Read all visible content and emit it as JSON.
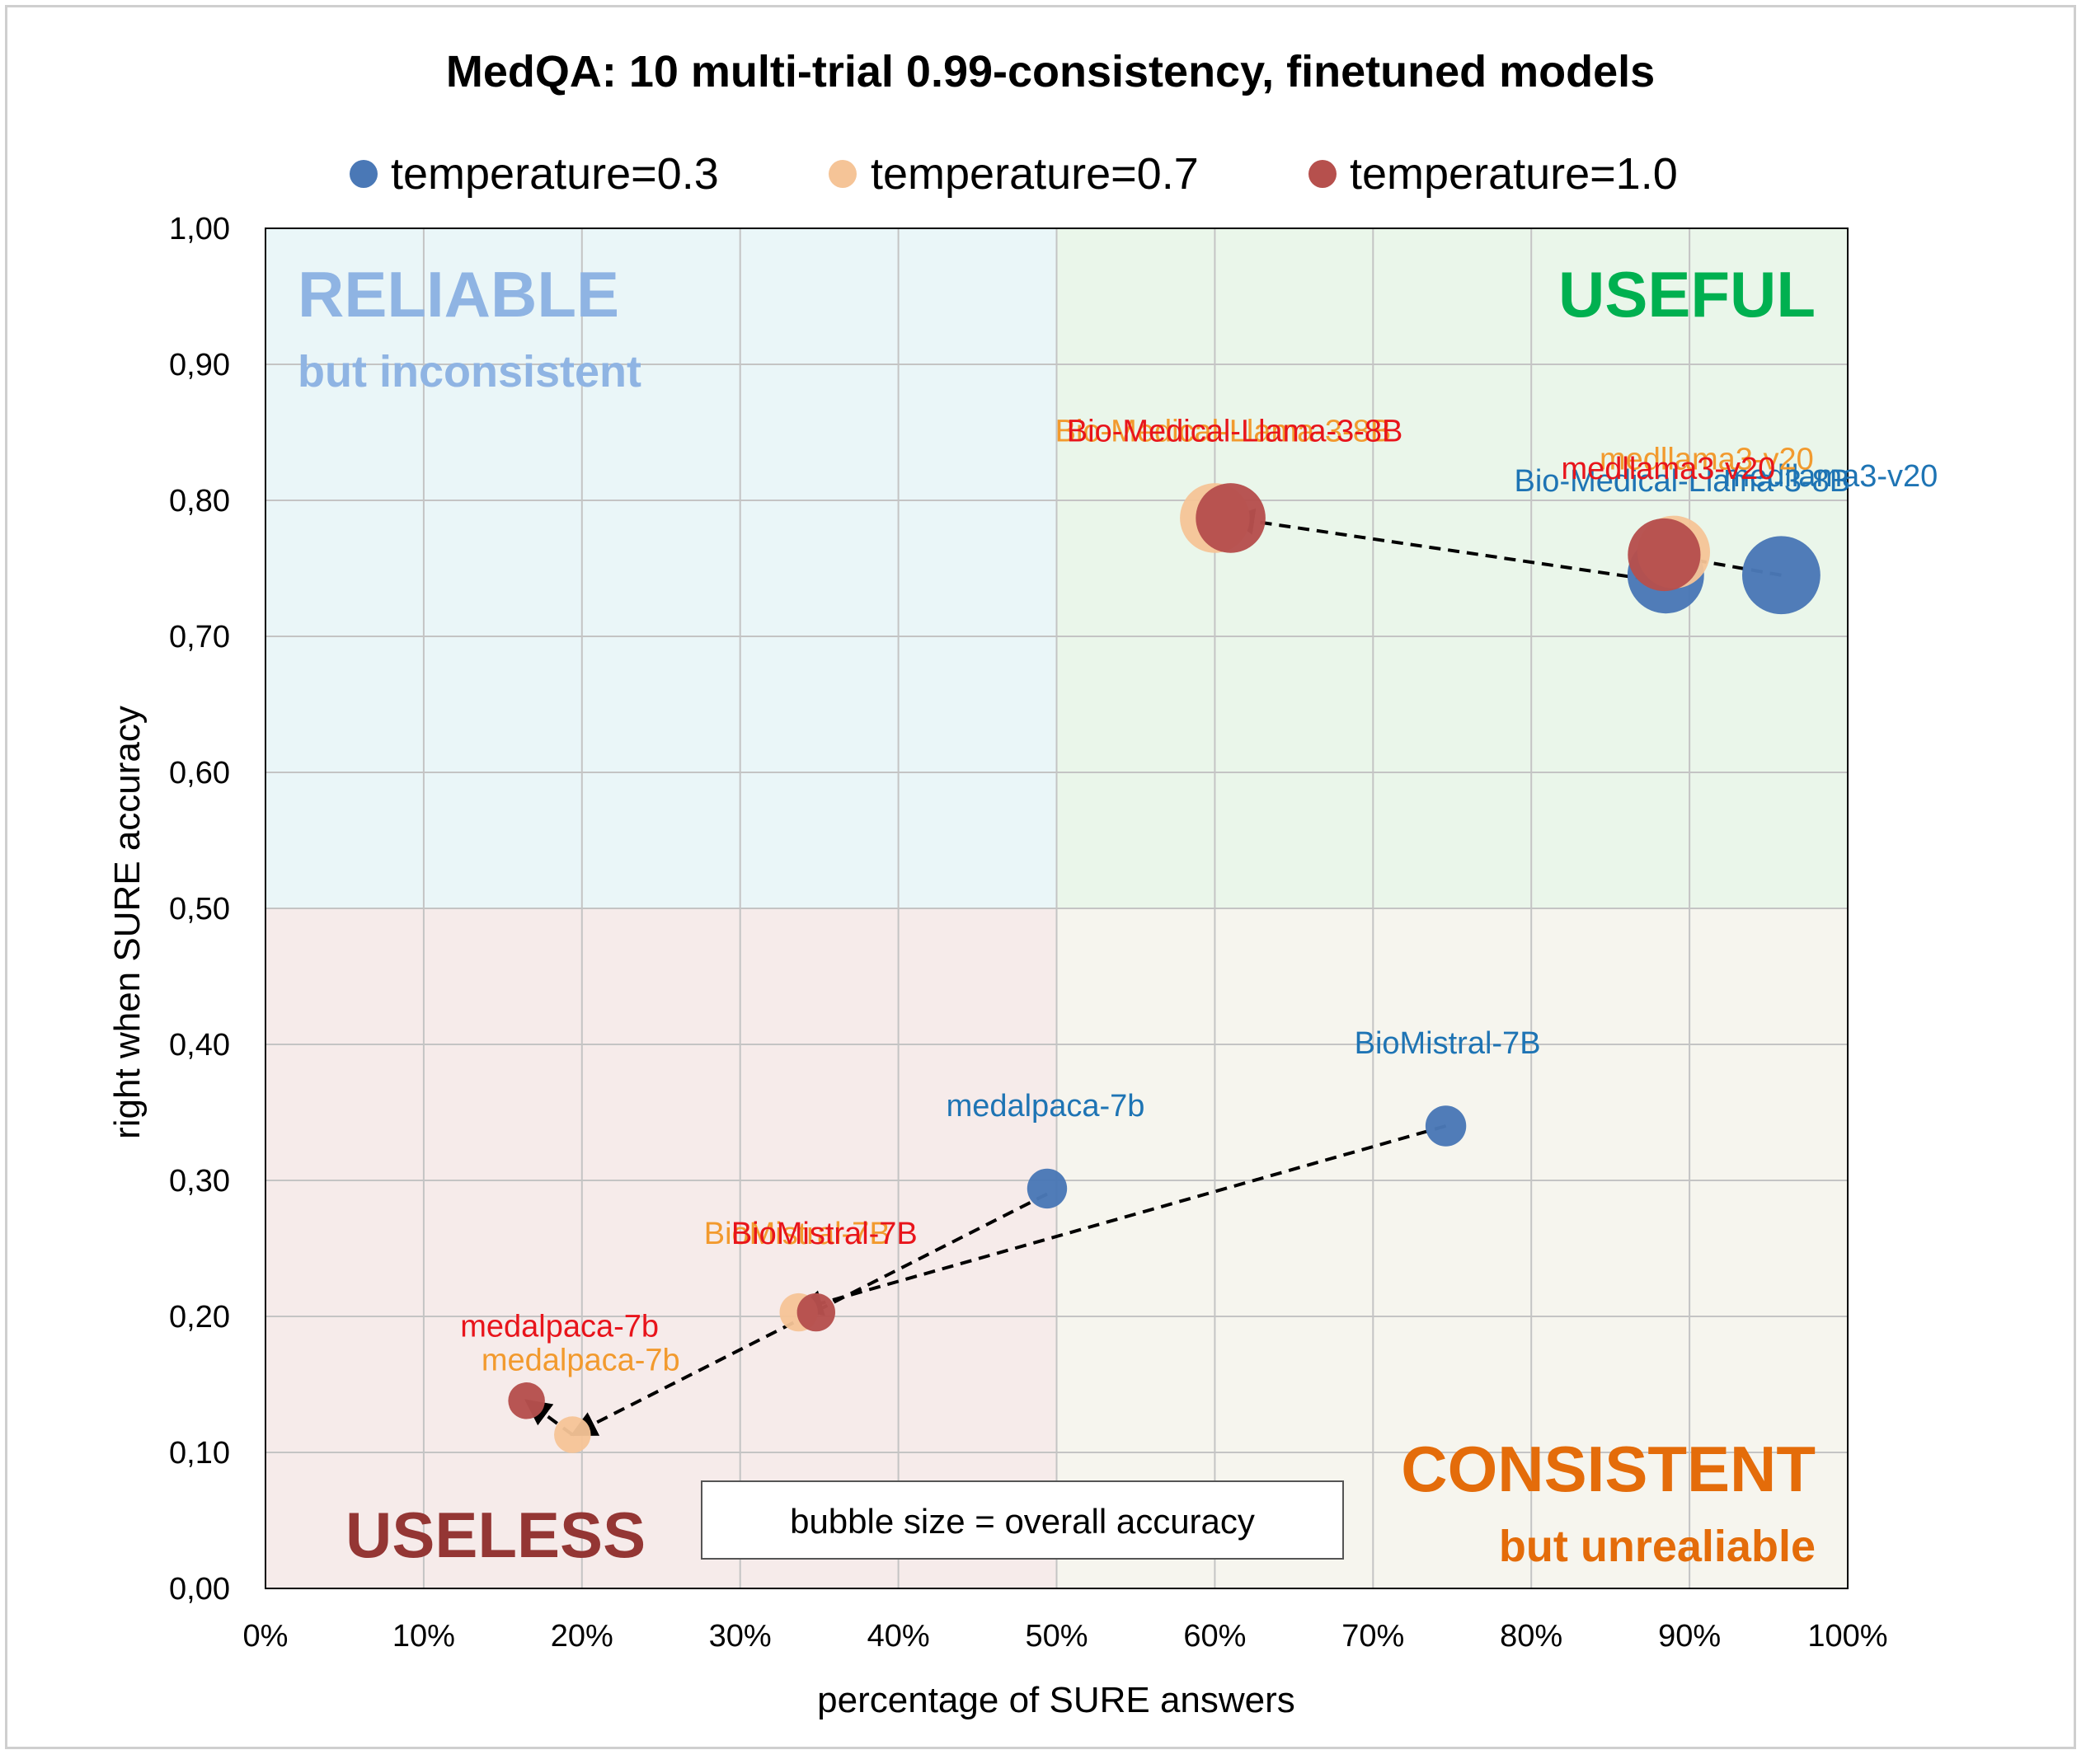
{
  "chart_data": {
    "type": "scatter",
    "title": "MedQA: 10 multi-trial 0.99-consistency, finetuned models",
    "xlabel": "percentage of SURE answers",
    "ylabel": "right when SURE accuracy",
    "xlim": [
      0,
      1
    ],
    "ylim": [
      0,
      1
    ],
    "x_ticks": [
      "0%",
      "10%",
      "20%",
      "30%",
      "40%",
      "50%",
      "60%",
      "70%",
      "80%",
      "90%",
      "100%"
    ],
    "y_ticks": [
      "0,00",
      "0,10",
      "0,20",
      "0,30",
      "0,40",
      "0,50",
      "0,60",
      "0,70",
      "0,80",
      "0,90",
      "1,00"
    ],
    "grid": true,
    "legend_position": "top",
    "series": [
      {
        "name": "temperature=0.3",
        "color": "#4a78b6",
        "label_color": "#1e74b4",
        "points": [
          {
            "label": "Bio-Medical-Llama-3-8B",
            "x": 0.885,
            "y": 0.745,
            "size": 0.745
          },
          {
            "label": "medllama3-v20",
            "x": 0.958,
            "y": 0.745,
            "size": 0.755
          },
          {
            "label": "BioMistral-7B",
            "x": 0.746,
            "y": 0.34,
            "size": 0.45
          },
          {
            "label": "medalpaca-7b",
            "x": 0.494,
            "y": 0.294,
            "size": 0.44
          }
        ]
      },
      {
        "name": "temperature=0.7",
        "color": "#f5c497",
        "label_color": "#f29a2e",
        "points": [
          {
            "label": "Bio-Medical-Llama-3-8B",
            "x": 0.6,
            "y": 0.787,
            "size": 0.7
          },
          {
            "label": "medllama3-v20",
            "x": 0.89,
            "y": 0.762,
            "size": 0.72
          },
          {
            "label": "BioMistral-7B",
            "x": 0.337,
            "y": 0.203,
            "size": 0.42
          },
          {
            "label": "medalpaca-7b",
            "x": 0.194,
            "y": 0.113,
            "size": 0.4
          }
        ]
      },
      {
        "name": "temperature=1.0",
        "color": "#b6504d",
        "label_color": "#e8141b",
        "points": [
          {
            "label": "Bio-Medical-Llama-3-8B",
            "x": 0.61,
            "y": 0.787,
            "size": 0.7
          },
          {
            "label": "medllama3-v20",
            "x": 0.884,
            "y": 0.76,
            "size": 0.72
          },
          {
            "label": "BioMistral-7B",
            "x": 0.348,
            "y": 0.203,
            "size": 0.42
          },
          {
            "label": "medalpaca-7b",
            "x": 0.165,
            "y": 0.138,
            "size": 0.4
          }
        ]
      }
    ],
    "arrows": [
      {
        "from": [
          0.958,
          0.745
        ],
        "to": [
          0.884,
          0.76
        ]
      },
      {
        "from": [
          0.885,
          0.74
        ],
        "to": [
          0.61,
          0.787
        ]
      },
      {
        "from": [
          0.746,
          0.34
        ],
        "to": [
          0.337,
          0.205
        ]
      },
      {
        "from": [
          0.494,
          0.29
        ],
        "to": [
          0.194,
          0.113
        ]
      },
      {
        "from": [
          0.194,
          0.113
        ],
        "to": [
          0.165,
          0.138
        ]
      }
    ],
    "quadrants": {
      "top_left": {
        "title": "RELIABLE",
        "subtitle": "but inconsistent",
        "color": "#8fb4e3",
        "bg": "#eaf6f8"
      },
      "top_right": {
        "title": "USEFUL",
        "subtitle": "",
        "color": "#00b050",
        "bg": "#eaf6ea"
      },
      "bottom_left": {
        "title": "USELESS",
        "subtitle": "",
        "color": "#943634",
        "bg": "#f6ebea"
      },
      "bottom_right": {
        "title": "CONSISTENT",
        "subtitle": "but unrealiable",
        "color": "#e46c0a",
        "bg": "#f6f5ee"
      }
    },
    "annotation": "bubble size = overall accuracy"
  }
}
